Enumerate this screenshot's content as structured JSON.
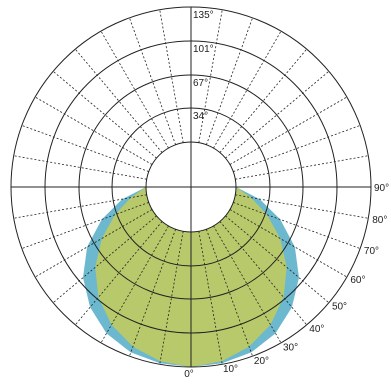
{
  "chart_data": {
    "type": "polar",
    "title": "",
    "radial_ticks": [
      "34°",
      "67°",
      "101°",
      "135°"
    ],
    "radial_tick_values": [
      34,
      67,
      101,
      135
    ],
    "radial_max": 135,
    "radial_inner_hole": 0.25,
    "angle_labels": [
      "0°",
      "10°",
      "20°",
      "30°",
      "40°",
      "50°",
      "60°",
      "70°",
      "80°",
      "90°"
    ],
    "angle_label_values": [
      0,
      10,
      20,
      30,
      40,
      50,
      60,
      70,
      80,
      90
    ],
    "spoke_step_deg": 10,
    "series": [
      {
        "color": "#6bb8cf",
        "angles": [
          0,
          10,
          20,
          30,
          40,
          50,
          60,
          70,
          80,
          90
        ],
        "values": [
          135,
          134,
          131,
          124,
          112,
          96,
          75,
          50,
          25,
          0
        ]
      },
      {
        "color": "#b7c96a",
        "angles": [
          0,
          10,
          20,
          30,
          40,
          50,
          60,
          70,
          80,
          90
        ],
        "values": [
          135,
          132,
          125,
          114,
          99,
          80,
          58,
          36,
          16,
          0
        ]
      }
    ]
  }
}
